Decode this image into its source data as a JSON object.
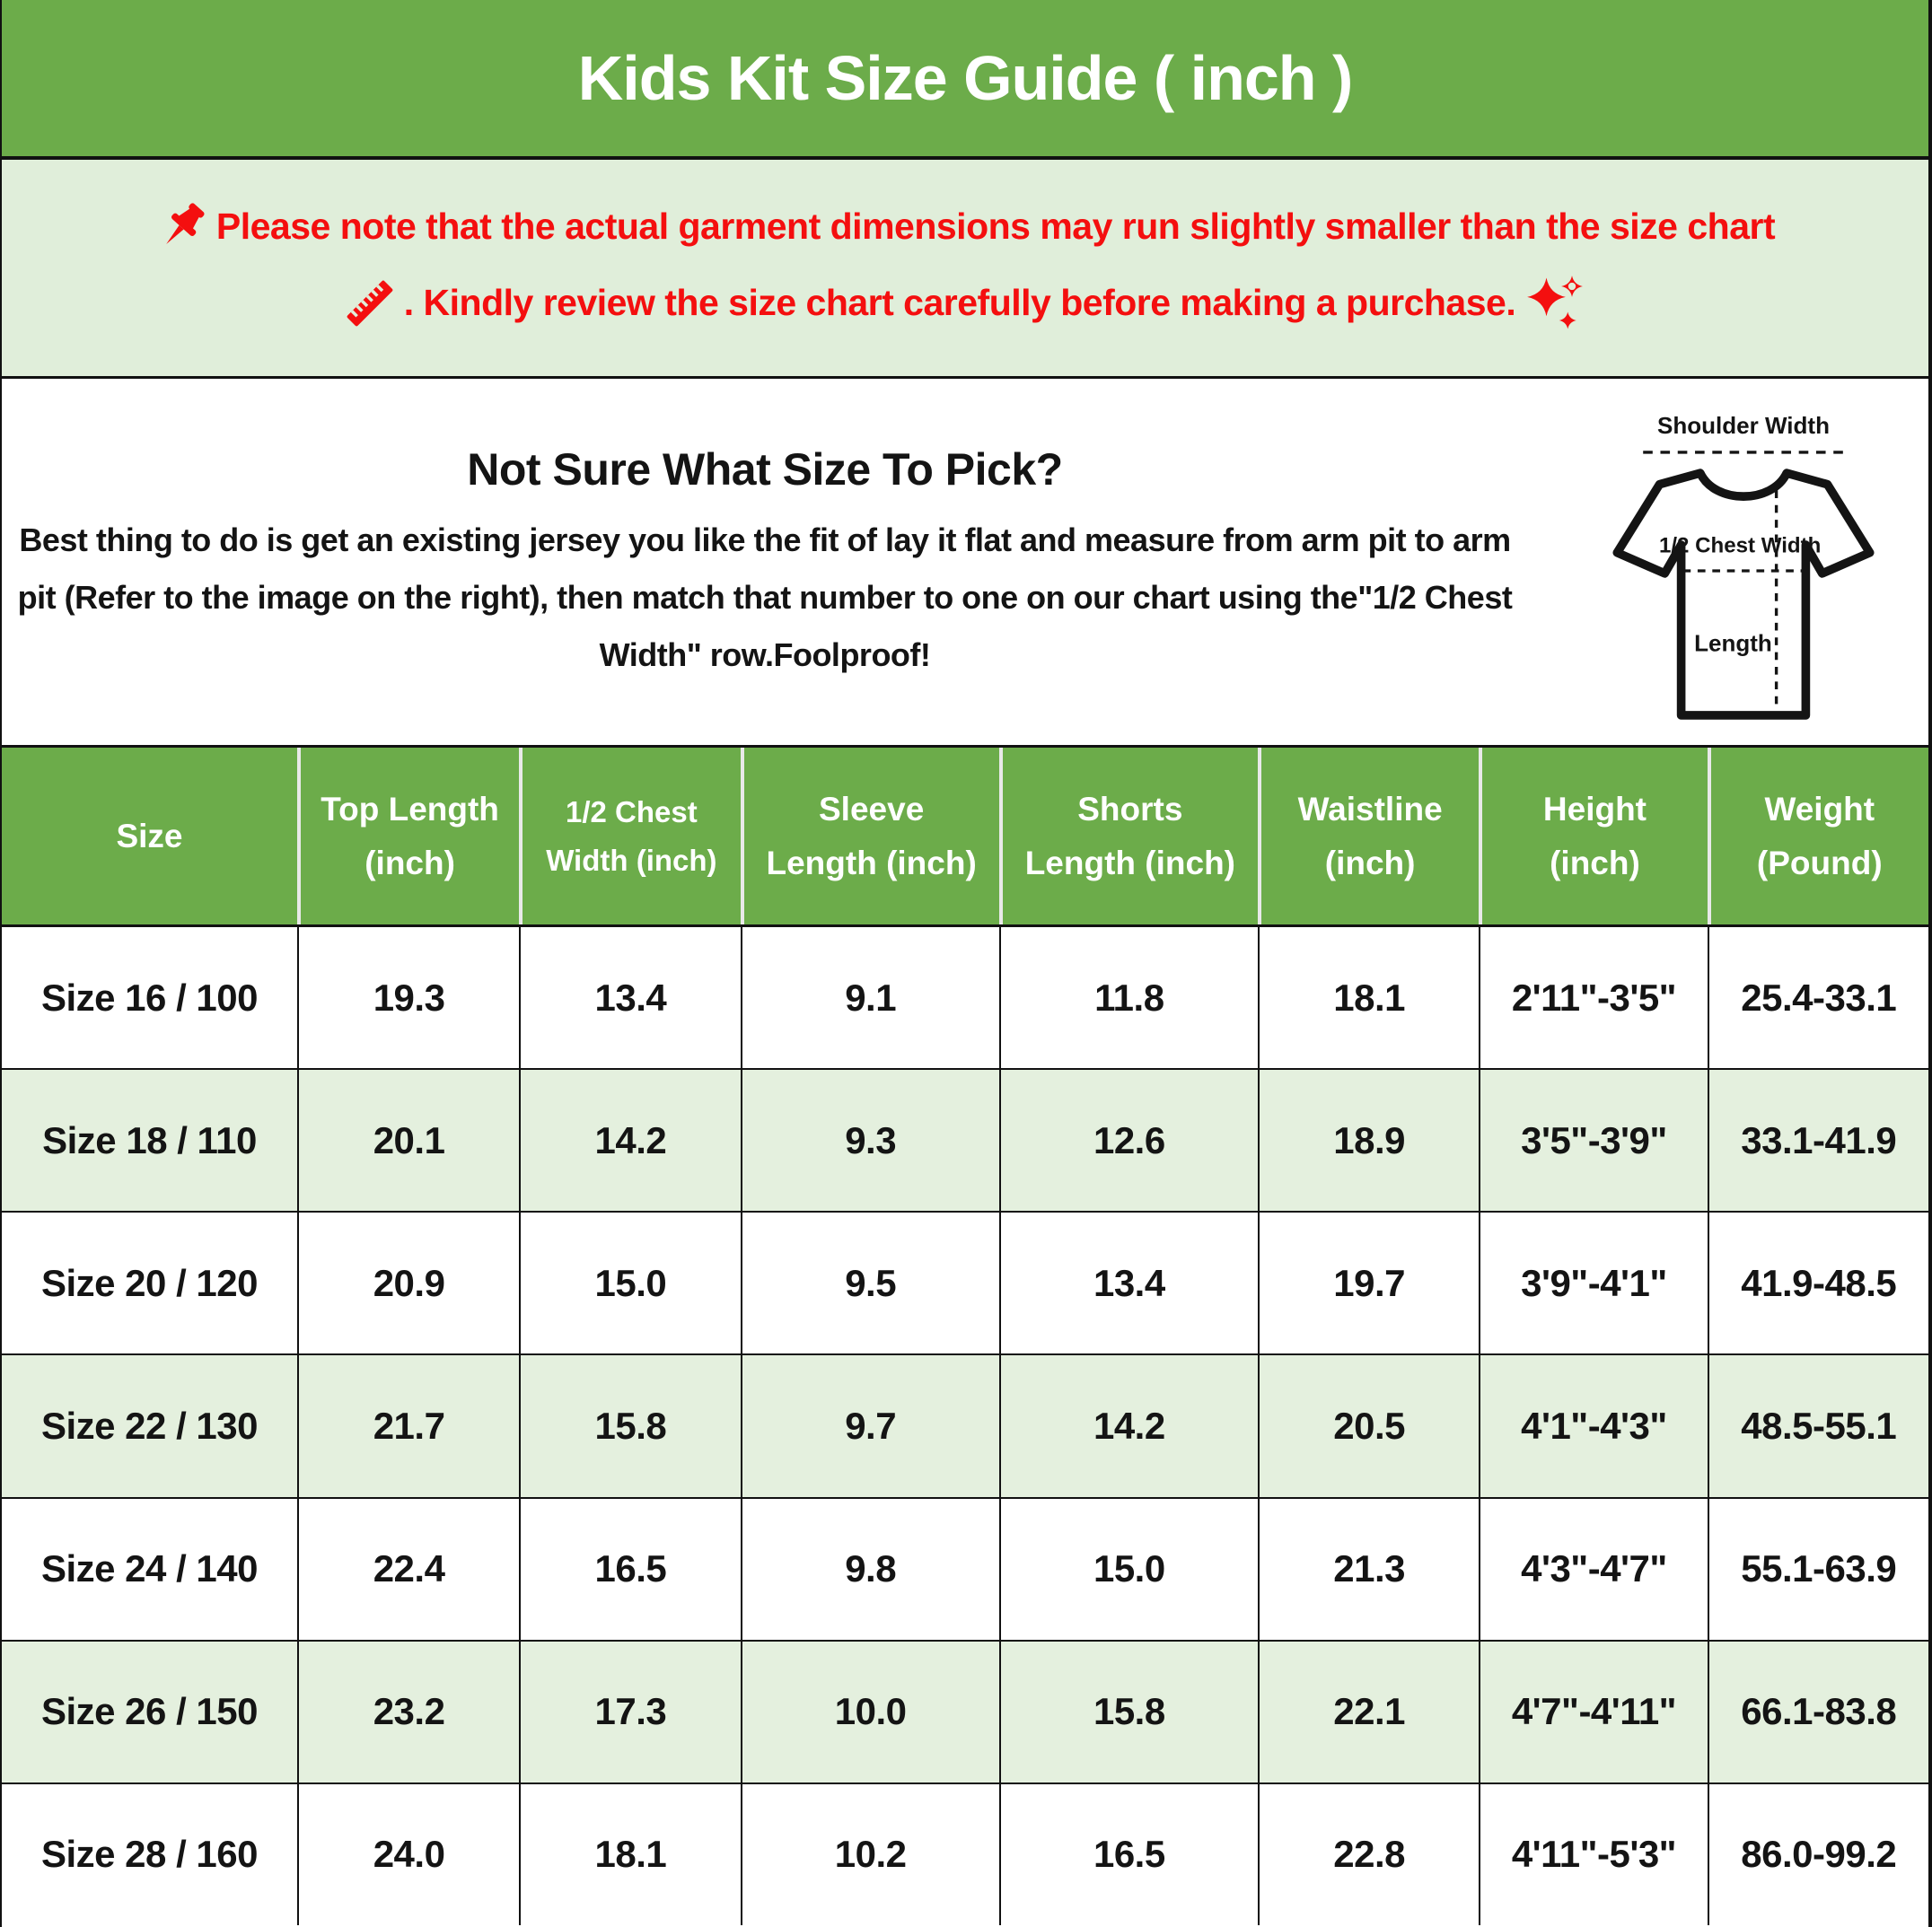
{
  "title": "Kids Kit Size Guide ( inch )",
  "notice": {
    "line1": "Please note that the actual garment dimensions may run slightly smaller than the size chart",
    "line2": ". Kindly review the size chart carefully before making a purchase.",
    "text_color": "#f40f0f",
    "icons": [
      "pushpin-icon",
      "ruler-icon",
      "sparkles-icon"
    ]
  },
  "info": {
    "heading": "Not Sure What Size To Pick?",
    "body": "Best thing to do is get an existing jersey you like the fit of lay it flat and measure from arm pit to arm pit (Refer to the image on the right), then match that number to one on our chart using the\"1/2 Chest Width\" row.Foolproof!"
  },
  "diagram": {
    "shoulder_label": "Shoulder Width",
    "chest_label": "1/2 Chest Width",
    "length_label": "Length"
  },
  "table": {
    "headers": [
      {
        "line1": "Size",
        "line2": "",
        "small": false
      },
      {
        "line1": "Top Length",
        "line2": "(inch)",
        "small": false
      },
      {
        "line1": "1/2 Chest",
        "line2": "Width (inch)",
        "small": true
      },
      {
        "line1": "Sleeve",
        "line2": "Length (inch)",
        "small": false
      },
      {
        "line1": "Shorts",
        "line2": "Length (inch)",
        "small": false
      },
      {
        "line1": "Waistline",
        "line2": "(inch)",
        "small": false
      },
      {
        "line1": "Height",
        "line2": "(inch)",
        "small": false
      },
      {
        "line1": "Weight",
        "line2": "(Pound)",
        "small": false
      }
    ],
    "rows": [
      [
        "Size 16 / 100",
        "19.3",
        "13.4",
        "9.1",
        "11.8",
        "18.1",
        "2'11\"-3'5\"",
        "25.4-33.1"
      ],
      [
        "Size 18 / 110",
        "20.1",
        "14.2",
        "9.3",
        "12.6",
        "18.9",
        "3'5\"-3'9\"",
        "33.1-41.9"
      ],
      [
        "Size 20 / 120",
        "20.9",
        "15.0",
        "9.5",
        "13.4",
        "19.7",
        "3'9\"-4'1\"",
        "41.9-48.5"
      ],
      [
        "Size 22 / 130",
        "21.7",
        "15.8",
        "9.7",
        "14.2",
        "20.5",
        "4'1\"-4'3\"",
        "48.5-55.1"
      ],
      [
        "Size 24 / 140",
        "22.4",
        "16.5",
        "9.8",
        "15.0",
        "21.3",
        "4'3\"-4'7\"",
        "55.1-63.9"
      ],
      [
        "Size 26 / 150",
        "23.2",
        "17.3",
        "10.0",
        "15.8",
        "22.1",
        "4'7\"-4'11\"",
        "66.1-83.8"
      ],
      [
        "Size 28 / 160",
        "24.0",
        "18.1",
        "10.2",
        "16.5",
        "22.8",
        "4'11\"-5'3\"",
        "86.0-99.2"
      ]
    ]
  },
  "colors": {
    "header_green": "#6cac4a",
    "notice_bg": "#e0eeda",
    "row_alt_green": "#e4f0de",
    "accent_red": "#f40f0f"
  }
}
